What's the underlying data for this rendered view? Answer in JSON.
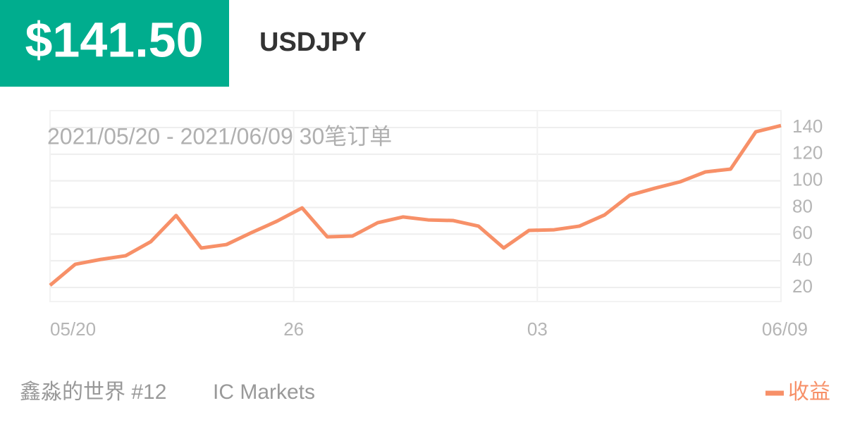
{
  "header": {
    "price": "$141.50",
    "symbol": "USDJPY"
  },
  "chart_data": {
    "type": "line",
    "subtitle": "2021/05/20 - 2021/06/09  30笔订单",
    "x": [
      0,
      1,
      2,
      3,
      4,
      5,
      6,
      7,
      8,
      9,
      10,
      11,
      12,
      13,
      14,
      15,
      16,
      17,
      18,
      19,
      20,
      21,
      22,
      23,
      24,
      25,
      26,
      27,
      28,
      29
    ],
    "xlim": [
      0,
      29
    ],
    "xticks": [
      {
        "value": 0,
        "label": "05/20"
      },
      {
        "value": 9.667,
        "label": "26"
      },
      {
        "value": 19.333,
        "label": "03"
      },
      {
        "value": 29,
        "label": "06/09"
      }
    ],
    "series": [
      {
        "name": "收益",
        "color": "#f79068",
        "values": [
          21.6,
          37.4,
          41,
          43.8,
          54.4,
          74,
          49.6,
          52.2,
          61.2,
          69.7,
          79.7,
          58,
          58.6,
          68.6,
          72.9,
          70.7,
          70.2,
          66,
          49.6,
          62.8,
          63.3,
          66,
          74.4,
          89.2,
          94.5,
          99.3,
          106.7,
          108.8,
          136.8,
          141.5
        ]
      }
    ],
    "ylim": [
      9.4,
      152.7
    ],
    "yticks": [
      20,
      40,
      60,
      80,
      100,
      120,
      140
    ],
    "grid": true,
    "legend": "bottom-right"
  },
  "footer": {
    "account": "鑫淼的世界 #12",
    "broker": "IC Markets"
  }
}
